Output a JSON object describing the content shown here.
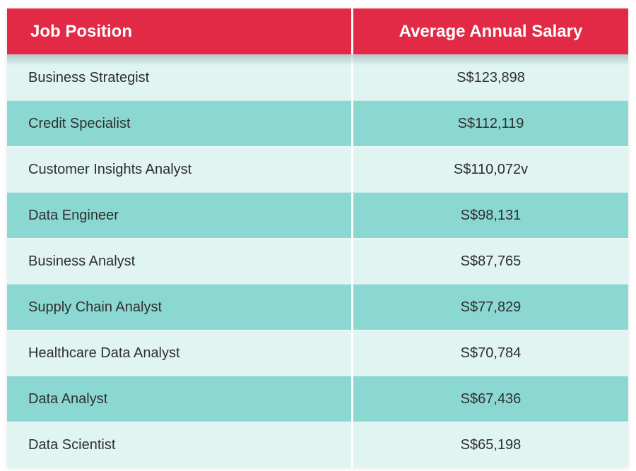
{
  "colors": {
    "header_bg": "#E22A46",
    "header_text": "#FFFFFF",
    "row_light": "#E0F4F2",
    "row_teal": "#8BD8D3",
    "body_text": "#2F2F2F",
    "divider": "#FFFFFF"
  },
  "chart_data": {
    "type": "table",
    "columns": [
      "Job Position",
      "Average Annual Salary"
    ],
    "rows": [
      [
        "Business Strategist",
        "S$123,898"
      ],
      [
        "Credit Specialist",
        "S$112,119"
      ],
      [
        "Customer Insights Analyst",
        "S$110,072v"
      ],
      [
        "Data Engineer",
        "S$98,131"
      ],
      [
        "Business Analyst",
        "S$87,765"
      ],
      [
        "Supply Chain Analyst",
        "S$77,829"
      ],
      [
        "Healthcare Data Analyst",
        "S$70,784"
      ],
      [
        "Data Analyst",
        "S$67,436"
      ],
      [
        "Data Scientist",
        "S$65,198"
      ]
    ],
    "title": "",
    "legend": null,
    "notes": "Alternating row colors: odd rows light mint, even rows teal; red header band with white column divider"
  }
}
